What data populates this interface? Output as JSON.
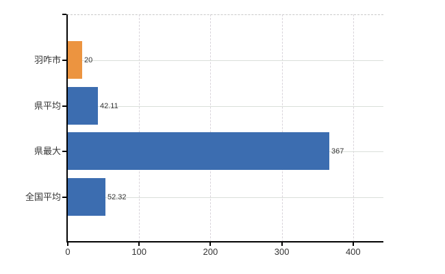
{
  "chart_data": {
    "type": "bar",
    "orientation": "horizontal",
    "title": "",
    "categories": [
      "羽咋市",
      "県平均",
      "県最大",
      "全国平均"
    ],
    "values": [
      20,
      42.11,
      367,
      52.32
    ],
    "value_labels": [
      "20",
      "42.11",
      "367",
      "52.32"
    ],
    "bar_colors": [
      "#ec9440",
      "#3c6db0",
      "#3c6db0",
      "#3c6db0"
    ],
    "x_ticks": [
      "0",
      "100",
      "200",
      "300",
      "400"
    ],
    "x_tick_values": [
      0,
      100,
      200,
      300,
      400
    ],
    "xlim": [
      0,
      443
    ],
    "grid": {
      "horizontal": "solid",
      "vertical": "dashed",
      "top_border": "dashed"
    },
    "legend": "none"
  },
  "colors": {
    "bar_highlight": "#ec9440",
    "bar_default": "#3c6db0",
    "axis": "#000000",
    "grid_horizontal": "#d9ded9",
    "grid_vertical": "#d8d3da",
    "top_border": "#c8c8c8",
    "text": "#333333",
    "background": "#ffffff"
  }
}
